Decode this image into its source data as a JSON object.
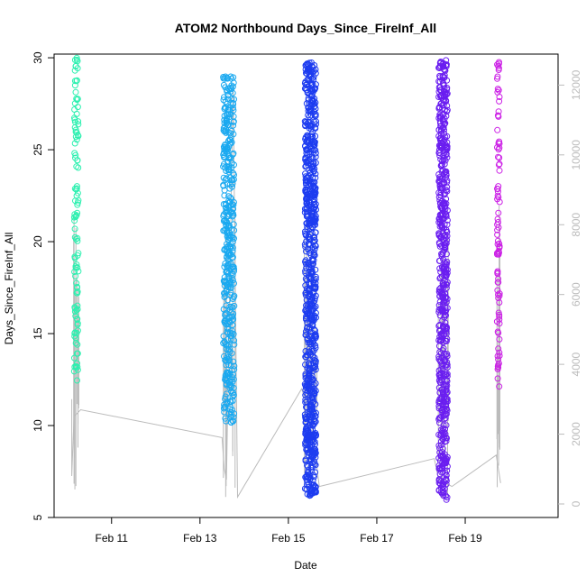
{
  "chart_data": {
    "type": "scatter",
    "title": "ATOM2 Northbound Days_Since_FireInf_All",
    "xlabel": "Date",
    "ylabel": "Days_Since_FireInf_All",
    "x_ticks": [
      "Feb 11",
      "Feb 13",
      "Feb 15",
      "Feb 17",
      "Feb 19"
    ],
    "y_ticks": [
      5,
      10,
      15,
      20,
      25,
      30
    ],
    "y_ticks_right": [
      0,
      2000,
      4000,
      6000,
      8000,
      10000,
      12000
    ],
    "xlim_days_feb": [
      9.7,
      21.1
    ],
    "ylim": [
      5,
      30.2
    ],
    "ylim_right": [
      0,
      12500
    ],
    "grid": false,
    "colors": {
      "group1": "#2ef0b0",
      "group2": "#1aa9f0",
      "group3": "#1d3cf0",
      "group4": "#6a1ef0",
      "group5": "#cc22e6",
      "line": "#bbbbbb"
    },
    "groups": [
      {
        "x_center": 10.2,
        "x_spread": 0.1,
        "y_min": 12.3,
        "y_max": 30.0,
        "n": 110,
        "color_key": "group1"
      },
      {
        "x_center": 13.65,
        "x_spread": 0.25,
        "y_min": 10.1,
        "y_max": 29.0,
        "n": 420,
        "color_key": "group2"
      },
      {
        "x_center": 15.5,
        "x_spread": 0.25,
        "y_min": 6.1,
        "y_max": 29.8,
        "n": 820,
        "color_key": "group3"
      },
      {
        "x_center": 18.5,
        "x_spread": 0.2,
        "y_min": 5.9,
        "y_max": 29.9,
        "n": 600,
        "color_key": "group4"
      },
      {
        "x_center": 19.75,
        "x_spread": 0.06,
        "y_min": 11.7,
        "y_max": 30.0,
        "n": 90,
        "color_key": "group5"
      }
    ],
    "line_series": [
      [
        10.1,
        3000
      ],
      [
        10.1,
        800
      ],
      [
        10.15,
        2500
      ],
      [
        10.3,
        2700
      ],
      [
        13.5,
        1900
      ],
      [
        13.55,
        1000
      ],
      [
        13.6,
        700
      ],
      [
        13.75,
        12000
      ],
      [
        13.85,
        200
      ],
      [
        15.3,
        3300
      ],
      [
        15.5,
        2500
      ],
      [
        15.7,
        500
      ],
      [
        18.3,
        1300
      ],
      [
        18.4,
        700
      ],
      [
        18.7,
        500
      ],
      [
        19.7,
        1400
      ],
      [
        19.8,
        600
      ]
    ]
  }
}
